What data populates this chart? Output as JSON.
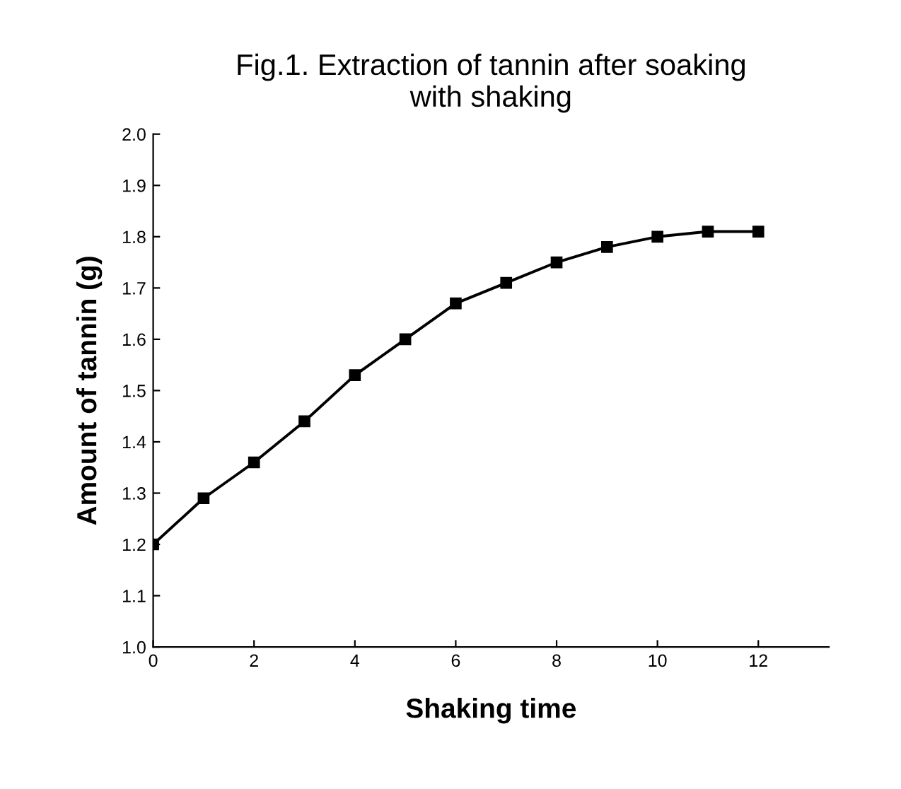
{
  "chart_data": {
    "type": "line",
    "title": "Fig.1. Extraction of tannin after soaking\nwith shaking",
    "xlabel": "Shaking time",
    "ylabel": "Amount of tannin (g)",
    "x": [
      0,
      1,
      2,
      3,
      4,
      5,
      6,
      7,
      8,
      9,
      10,
      11,
      12
    ],
    "series": [
      {
        "color": "#000000",
        "values": [
          1.2,
          1.29,
          1.36,
          1.44,
          1.53,
          1.6,
          1.67,
          1.71,
          1.75,
          1.78,
          1.8,
          1.81,
          1.81
        ]
      }
    ],
    "xlim": [
      0,
      13.4
    ],
    "xticks": [
      0,
      2,
      4,
      6,
      8,
      10,
      12
    ],
    "ylim": [
      1.0,
      2.0
    ],
    "yticks": [
      {
        "value": 1.0,
        "label": "1.0"
      },
      1.1,
      1.2,
      1.3,
      1.4,
      1.5,
      1.6,
      1.7,
      1.8,
      1.9,
      {
        "value": 2.0,
        "label": "2.0"
      }
    ],
    "marker": "square",
    "line_style": "solid",
    "grid": false
  }
}
